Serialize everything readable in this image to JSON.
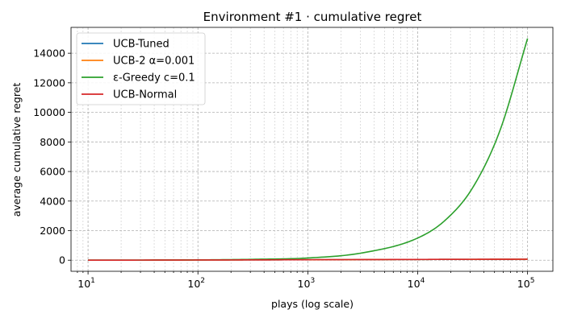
{
  "chart_data": {
    "type": "line",
    "title": "Environment #1 · cumulative regret",
    "xlabel": "plays (log scale)",
    "ylabel": "average cumulative regret",
    "xscale": "log",
    "xlim": [
      7,
      170000
    ],
    "ylim": [
      -750,
      15750
    ],
    "x_ticks": [
      {
        "value": 10,
        "base": "10",
        "exp": "1"
      },
      {
        "value": 100,
        "base": "10",
        "exp": "2"
      },
      {
        "value": 1000,
        "base": "10",
        "exp": "3"
      },
      {
        "value": 10000,
        "base": "10",
        "exp": "4"
      },
      {
        "value": 100000,
        "base": "10",
        "exp": "5"
      }
    ],
    "y_ticks": [
      0,
      2000,
      4000,
      6000,
      8000,
      10000,
      12000,
      14000
    ],
    "y_tick_labels": [
      "0",
      "2000",
      "4000",
      "6000",
      "8000",
      "10000",
      "12000",
      "14000"
    ],
    "grid": true,
    "legend_position": "top-left",
    "x": [
      10,
      31.6,
      100,
      316,
      1000,
      3162,
      10000,
      17783,
      31623,
      56234,
      100000
    ],
    "series": [
      {
        "name": "UCB-Tuned",
        "color": "#1f77b4",
        "values": [
          0,
          5,
          12,
          20,
          30,
          40,
          50,
          55,
          58,
          62,
          65
        ]
      },
      {
        "name": "UCB-2 α=0.001",
        "color": "#ff7f0e",
        "values": [
          0,
          5,
          12,
          20,
          30,
          40,
          50,
          55,
          58,
          62,
          65
        ]
      },
      {
        "name": "ε-Greedy c=0.1",
        "color": "#2ca02c",
        "values": [
          0,
          5,
          20,
          60,
          150,
          500,
          1500,
          2700,
          4900,
          8800,
          15000
        ]
      },
      {
        "name": "UCB-Normal",
        "color": "#d62728",
        "values": [
          0,
          6,
          14,
          22,
          32,
          42,
          52,
          57,
          60,
          64,
          68
        ]
      }
    ]
  }
}
